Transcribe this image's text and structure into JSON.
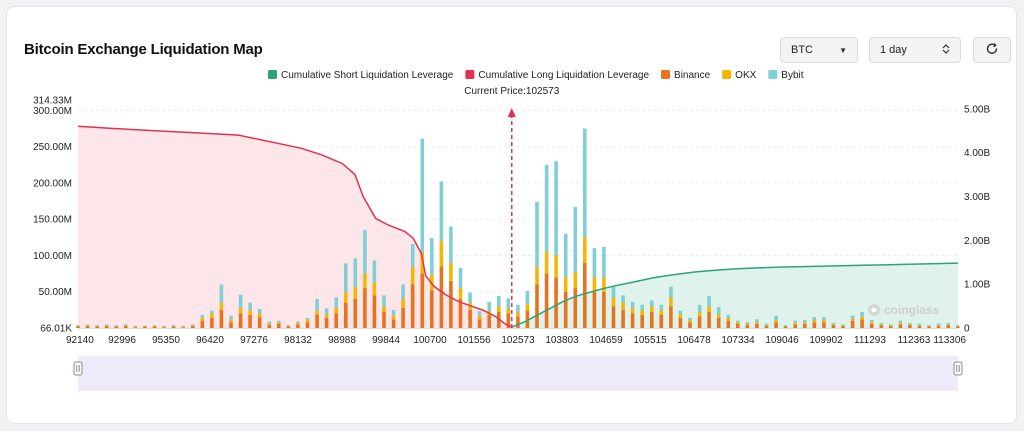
{
  "header": {
    "title": "Bitcoin Exchange Liquidation Map",
    "coin_select": "BTC",
    "range_select": "1 day"
  },
  "icons": {
    "dropdown": "chevron-down-icon",
    "stepper": "up-down-stepper-icon",
    "refresh": "refresh-icon",
    "watermark": "coinglass-logo"
  },
  "colors": {
    "binance": "#e8731f",
    "okx": "#f2b705",
    "bybit": "#7fcfd4",
    "cum_short": "#2da37a",
    "cum_long": "#e0334f",
    "current_price_marker": "#e0334f"
  },
  "chart_data": {
    "type": "bar",
    "legend": [
      {
        "name": "Cumulative Short Liquidation Leverage",
        "color": "#2da37a"
      },
      {
        "name": "Cumulative Long Liquidation Leverage",
        "color": "#e0334f"
      },
      {
        "name": "Binance",
        "color": "#e8731f"
      },
      {
        "name": "OKX",
        "color": "#f2b705"
      },
      {
        "name": "Bybit",
        "color": "#7fcfd4"
      }
    ],
    "legend_position": "top-center",
    "current_price_label": "Current Price:102573",
    "current_price": 102573,
    "x_range": [
      92140,
      113306
    ],
    "x_ticks": [
      "92140",
      "92996",
      "95350",
      "96420",
      "97276",
      "98132",
      "98988",
      "99844",
      "100700",
      "101556",
      "102573",
      "103803",
      "104659",
      "105515",
      "106478",
      "107334",
      "109046",
      "109902",
      "111293",
      "112363",
      "113306"
    ],
    "y_left": {
      "ticks": [
        "66.01K",
        "50.00M",
        "100.00M",
        "150.00M",
        "200.00M",
        "250.00M",
        "300.00M"
      ],
      "max_label": "314.33M",
      "range": [
        0,
        314330000
      ]
    },
    "y_right": {
      "ticks": [
        "0",
        "1.00B",
        "2.00B",
        "3.00B",
        "4.00B",
        "5.00B"
      ],
      "range": [
        0,
        5200000000
      ]
    },
    "grid": "horizontal dashed",
    "watermark": "coinglass",
    "bars": [
      {
        "price": 92140,
        "binance": 2000000,
        "okx": 1000000,
        "bybit": 1000000
      },
      {
        "price": 92370,
        "binance": 3000000,
        "okx": 1000000,
        "bybit": 1000000
      },
      {
        "price": 92600,
        "binance": 2000000,
        "okx": 1000000,
        "bybit": 1000000
      },
      {
        "price": 92830,
        "binance": 3000000,
        "okx": 1000000,
        "bybit": 1000000
      },
      {
        "price": 93060,
        "binance": 2000000,
        "okx": 1000000,
        "bybit": 1000000
      },
      {
        "price": 93290,
        "binance": 3000000,
        "okx": 1000000,
        "bybit": 1000000
      },
      {
        "price": 93520,
        "binance": 1000000,
        "okx": 1000000,
        "bybit": 1000000
      },
      {
        "price": 93750,
        "binance": 2000000,
        "okx": 1000000,
        "bybit": 0
      },
      {
        "price": 93980,
        "binance": 2000000,
        "okx": 1000000,
        "bybit": 1000000
      },
      {
        "price": 94210,
        "binance": 1000000,
        "okx": 1000000,
        "bybit": 1000000
      },
      {
        "price": 94440,
        "binance": 2000000,
        "okx": 1000000,
        "bybit": 1000000
      },
      {
        "price": 94670,
        "binance": 1000000,
        "okx": 1000000,
        "bybit": 1000000
      },
      {
        "price": 94900,
        "binance": 3000000,
        "okx": 1000000,
        "bybit": 1000000
      },
      {
        "price": 95130,
        "binance": 10000000,
        "okx": 4000000,
        "bybit": 4000000
      },
      {
        "price": 95360,
        "binance": 14000000,
        "okx": 6000000,
        "bybit": 4000000
      },
      {
        "price": 95590,
        "binance": 25000000,
        "okx": 10000000,
        "bybit": 25000000
      },
      {
        "price": 95820,
        "binance": 8000000,
        "okx": 4000000,
        "bybit": 5000000
      },
      {
        "price": 96050,
        "binance": 20000000,
        "okx": 8000000,
        "bybit": 18000000
      },
      {
        "price": 96280,
        "binance": 18000000,
        "okx": 7000000,
        "bybit": 10000000
      },
      {
        "price": 96510,
        "binance": 15000000,
        "okx": 5000000,
        "bybit": 6000000
      },
      {
        "price": 96740,
        "binance": 4000000,
        "okx": 2000000,
        "bybit": 3000000
      },
      {
        "price": 96970,
        "binance": 6000000,
        "okx": 2000000,
        "bybit": 2000000
      },
      {
        "price": 97200,
        "binance": 2000000,
        "okx": 1000000,
        "bybit": 1000000
      },
      {
        "price": 97430,
        "binance": 5000000,
        "okx": 2000000,
        "bybit": 2000000
      },
      {
        "price": 97660,
        "binance": 8000000,
        "okx": 3000000,
        "bybit": 3000000
      },
      {
        "price": 97890,
        "binance": 18000000,
        "okx": 6000000,
        "bybit": 16000000
      },
      {
        "price": 98120,
        "binance": 14000000,
        "okx": 5000000,
        "bybit": 8000000
      },
      {
        "price": 98350,
        "binance": 20000000,
        "okx": 8000000,
        "bybit": 14000000
      },
      {
        "price": 98580,
        "binance": 35000000,
        "okx": 14000000,
        "bybit": 40000000
      },
      {
        "price": 98810,
        "binance": 40000000,
        "okx": 16000000,
        "bybit": 40000000
      },
      {
        "price": 99040,
        "binance": 55000000,
        "okx": 20000000,
        "bybit": 60000000
      },
      {
        "price": 99270,
        "binance": 45000000,
        "okx": 18000000,
        "bybit": 30000000
      },
      {
        "price": 99500,
        "binance": 22000000,
        "okx": 8000000,
        "bybit": 15000000
      },
      {
        "price": 99730,
        "binance": 12000000,
        "okx": 5000000,
        "bybit": 8000000
      },
      {
        "price": 99960,
        "binance": 28000000,
        "okx": 12000000,
        "bybit": 20000000
      },
      {
        "price": 100190,
        "binance": 60000000,
        "okx": 24000000,
        "bybit": 32000000
      },
      {
        "price": 100420,
        "binance": 75000000,
        "okx": 30000000,
        "bybit": 156000000
      },
      {
        "price": 100650,
        "binance": 52000000,
        "okx": 22000000,
        "bybit": 50000000
      },
      {
        "price": 100880,
        "binance": 85000000,
        "okx": 35000000,
        "bybit": 82000000
      },
      {
        "price": 101110,
        "binance": 65000000,
        "okx": 25000000,
        "bybit": 50000000
      },
      {
        "price": 101340,
        "binance": 40000000,
        "okx": 15000000,
        "bybit": 28000000
      },
      {
        "price": 101570,
        "binance": 25000000,
        "okx": 10000000,
        "bybit": 14000000
      },
      {
        "price": 101800,
        "binance": 12000000,
        "okx": 5000000,
        "bybit": 6000000
      },
      {
        "price": 102030,
        "binance": 18000000,
        "okx": 6000000,
        "bybit": 12000000
      },
      {
        "price": 102260,
        "binance": 22000000,
        "okx": 8000000,
        "bybit": 14000000
      },
      {
        "price": 102490,
        "binance": 20000000,
        "okx": 7000000,
        "bybit": 14000000
      },
      {
        "price": 102720,
        "binance": 16000000,
        "okx": 6000000,
        "bybit": 10000000
      },
      {
        "price": 102950,
        "binance": 24000000,
        "okx": 9000000,
        "bybit": 18000000
      },
      {
        "price": 103180,
        "binance": 60000000,
        "okx": 24000000,
        "bybit": 90000000
      },
      {
        "price": 103410,
        "binance": 75000000,
        "okx": 30000000,
        "bybit": 120000000
      },
      {
        "price": 103640,
        "binance": 70000000,
        "okx": 30000000,
        "bybit": 130000000
      },
      {
        "price": 103870,
        "binance": 50000000,
        "okx": 20000000,
        "bybit": 60000000
      },
      {
        "price": 104100,
        "binance": 55000000,
        "okx": 22000000,
        "bybit": 90000000
      },
      {
        "price": 104330,
        "binance": 90000000,
        "okx": 35000000,
        "bybit": 150000000
      },
      {
        "price": 104560,
        "binance": 50000000,
        "okx": 20000000,
        "bybit": 40000000
      },
      {
        "price": 104790,
        "binance": 50000000,
        "okx": 20000000,
        "bybit": 42000000
      },
      {
        "price": 105020,
        "binance": 30000000,
        "okx": 12000000,
        "bybit": 15000000
      },
      {
        "price": 105250,
        "binance": 25000000,
        "okx": 10000000,
        "bybit": 10000000
      },
      {
        "price": 105480,
        "binance": 20000000,
        "okx": 8000000,
        "bybit": 8000000
      },
      {
        "price": 105710,
        "binance": 18000000,
        "okx": 7000000,
        "bybit": 7000000
      },
      {
        "price": 105940,
        "binance": 22000000,
        "okx": 8000000,
        "bybit": 8000000
      },
      {
        "price": 106170,
        "binance": 18000000,
        "okx": 7000000,
        "bybit": 7000000
      },
      {
        "price": 106400,
        "binance": 30000000,
        "okx": 12000000,
        "bybit": 15000000
      },
      {
        "price": 106630,
        "binance": 14000000,
        "okx": 5000000,
        "bybit": 5000000
      },
      {
        "price": 106860,
        "binance": 8000000,
        "okx": 3000000,
        "bybit": 3000000
      },
      {
        "price": 107090,
        "binance": 16000000,
        "okx": 6000000,
        "bybit": 10000000
      },
      {
        "price": 107320,
        "binance": 22000000,
        "okx": 8000000,
        "bybit": 14000000
      },
      {
        "price": 107550,
        "binance": 14000000,
        "okx": 5000000,
        "bybit": 10000000
      },
      {
        "price": 107780,
        "binance": 10000000,
        "okx": 4000000,
        "bybit": 4000000
      },
      {
        "price": 108010,
        "binance": 6000000,
        "okx": 2000000,
        "bybit": 2000000
      },
      {
        "price": 108240,
        "binance": 4000000,
        "okx": 2000000,
        "bybit": 2000000
      },
      {
        "price": 108470,
        "binance": 6000000,
        "okx": 2000000,
        "bybit": 4000000
      },
      {
        "price": 108700,
        "binance": 3000000,
        "okx": 1000000,
        "bybit": 2000000
      },
      {
        "price": 108930,
        "binance": 8000000,
        "okx": 3000000,
        "bybit": 6000000
      },
      {
        "price": 109160,
        "binance": 2000000,
        "okx": 1000000,
        "bybit": 1000000
      },
      {
        "price": 109390,
        "binance": 5000000,
        "okx": 2000000,
        "bybit": 3000000
      },
      {
        "price": 109620,
        "binance": 6000000,
        "okx": 2000000,
        "bybit": 3000000
      },
      {
        "price": 109850,
        "binance": 8000000,
        "okx": 3000000,
        "bybit": 4000000
      },
      {
        "price": 110080,
        "binance": 8000000,
        "okx": 3000000,
        "bybit": 4000000
      },
      {
        "price": 110310,
        "binance": 4000000,
        "okx": 1000000,
        "bybit": 2000000
      },
      {
        "price": 110540,
        "binance": 3000000,
        "okx": 1000000,
        "bybit": 1000000
      },
      {
        "price": 110770,
        "binance": 10000000,
        "okx": 3000000,
        "bybit": 4000000
      },
      {
        "price": 111000,
        "binance": 12000000,
        "okx": 4000000,
        "bybit": 6000000
      },
      {
        "price": 111230,
        "binance": 6000000,
        "okx": 2000000,
        "bybit": 3000000
      },
      {
        "price": 111460,
        "binance": 4000000,
        "okx": 1000000,
        "bybit": 2000000
      },
      {
        "price": 111690,
        "binance": 3000000,
        "okx": 1000000,
        "bybit": 1000000
      },
      {
        "price": 111920,
        "binance": 5000000,
        "okx": 2000000,
        "bybit": 3000000
      },
      {
        "price": 112150,
        "binance": 4000000,
        "okx": 1000000,
        "bybit": 2000000
      },
      {
        "price": 112380,
        "binance": 3000000,
        "okx": 1000000,
        "bybit": 2000000
      },
      {
        "price": 112610,
        "binance": 2000000,
        "okx": 1000000,
        "bybit": 1000000
      },
      {
        "price": 112840,
        "binance": 3000000,
        "okx": 1000000,
        "bybit": 2000000
      },
      {
        "price": 113070,
        "binance": 4000000,
        "okx": 1000000,
        "bybit": 2000000
      },
      {
        "price": 113300,
        "binance": 2000000,
        "okx": 1000000,
        "bybit": 1000000
      }
    ],
    "cum_long": {
      "name": "Cumulative Long Liquidation Leverage",
      "x": [
        92140,
        93000,
        94000,
        95000,
        96000,
        96500,
        97000,
        97500,
        98000,
        98500,
        98800,
        99000,
        99300,
        99600,
        100000,
        100200,
        100400,
        100500,
        100700,
        101000,
        101300,
        101600,
        101900,
        102200,
        102400,
        102573
      ],
      "y": [
        4600000000.0,
        4550000000.0,
        4500000000.0,
        4450000000.0,
        4400000000.0,
        4300000000.0,
        4200000000.0,
        4100000000.0,
        3950000000.0,
        3750000000.0,
        3500000000.0,
        3000000000.0,
        2500000000.0,
        2350000000.0,
        2200000000.0,
        2050000000.0,
        1700000000.0,
        1200000000.0,
        950000000.0,
        750000000.0,
        600000000.0,
        500000000.0,
        400000000.0,
        250000000.0,
        100000000.0,
        20000000.0
      ]
    },
    "cum_short": {
      "name": "Cumulative Short Liquidation Leverage",
      "x": [
        102573,
        102900,
        103200,
        103500,
        103800,
        104100,
        104400,
        104700,
        105000,
        105500,
        106000,
        106500,
        107000,
        107500,
        108000,
        108500,
        109000,
        110000,
        111000,
        112000,
        113306
      ],
      "y": [
        20000000.0,
        150000000.0,
        300000000.0,
        450000000.0,
        600000000.0,
        720000000.0,
        800000000.0,
        880000000.0,
        950000000.0,
        1050000000.0,
        1150000000.0,
        1220000000.0,
        1280000000.0,
        1320000000.0,
        1350000000.0,
        1370000000.0,
        1390000000.0,
        1410000000.0,
        1430000000.0,
        1450000000.0,
        1480000000.0
      ]
    }
  }
}
